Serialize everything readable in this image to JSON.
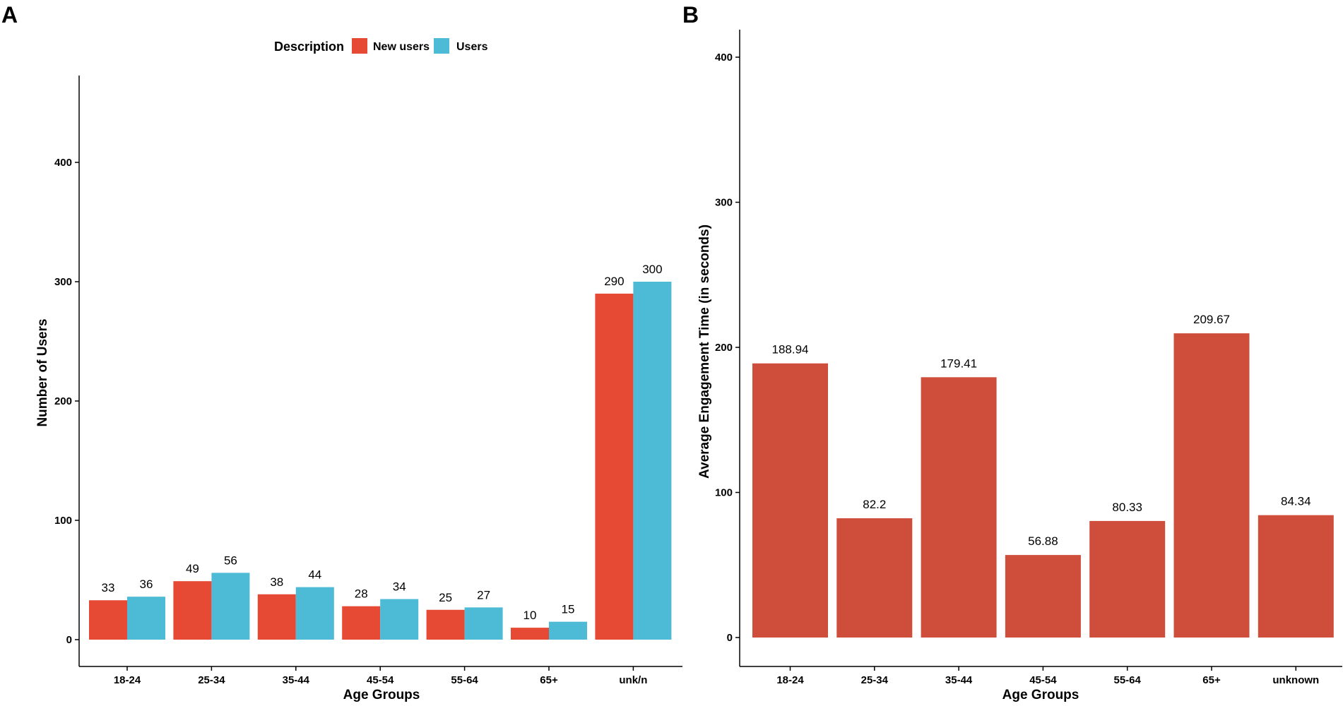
{
  "colors": {
    "new_users": "#E64A35",
    "users": "#4DBAD6",
    "engagement": "#CF4E3B",
    "axis": "#000000"
  },
  "chart_data": [
    {
      "panel": "A",
      "type": "bar",
      "title": "",
      "xlabel": "Age Groups",
      "ylabel": "Number of Users",
      "categories": [
        "18-24",
        "25-34",
        "35-44",
        "45-54",
        "55-64",
        "65+",
        "unk/n"
      ],
      "series": [
        {
          "name": "New users",
          "values": [
            33,
            49,
            38,
            28,
            25,
            10,
            290
          ]
        },
        {
          "name": "Users",
          "values": [
            36,
            56,
            44,
            34,
            27,
            15,
            300
          ]
        }
      ],
      "yticks": [
        0,
        100,
        200,
        300,
        400
      ],
      "ylim": [
        0,
        470
      ],
      "grid": false,
      "legend": {
        "title": "Description",
        "position": "top-center"
      }
    },
    {
      "panel": "B",
      "type": "bar",
      "title": "",
      "xlabel": "Age Groups",
      "ylabel": "Average Engagement Time (in seconds)",
      "categories": [
        "18-24",
        "25-34",
        "35-44",
        "45-54",
        "55-64",
        "65+",
        "unknown"
      ],
      "values": [
        188.94,
        82.2,
        179.41,
        56.88,
        80.33,
        209.67,
        84.34
      ],
      "value_labels": [
        "188.94",
        "82.2",
        "179.41",
        "56.88",
        "80.33",
        "209.67",
        "84.34"
      ],
      "yticks": [
        0,
        100,
        200,
        300,
        400
      ],
      "ylim": [
        0,
        420
      ],
      "grid": false
    }
  ]
}
